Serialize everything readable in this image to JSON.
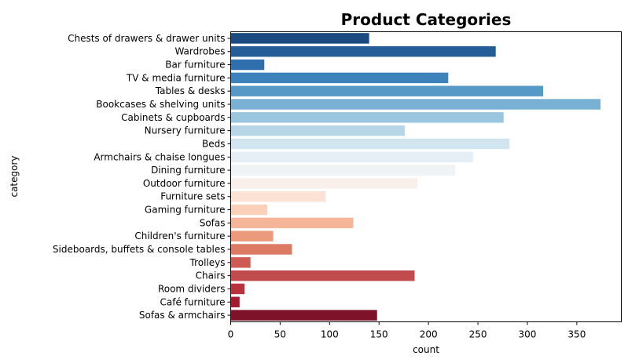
{
  "chart_data": {
    "type": "bar",
    "orientation": "horizontal",
    "title": "Product Categories",
    "xlabel": "count",
    "ylabel": "category",
    "xlim": [
      0,
      395
    ],
    "xticks": [
      0,
      50,
      100,
      150,
      200,
      250,
      300,
      350
    ],
    "grid": false,
    "legend": "none",
    "palette": "RdBu_r",
    "categories": [
      "Chests of drawers & drawer units",
      "Wardrobes",
      "Bar furniture",
      "TV & media furniture",
      "Tables & desks",
      "Bookcases & shelving units",
      "Cabinets & cupboards",
      "Nursery furniture",
      "Beds",
      "Armchairs & chaise longues",
      "Dining furniture",
      "Outdoor furniture",
      "Furniture sets",
      "Gaming furniture",
      "Sofas",
      "Children's furniture",
      "Sideboards, buffets & console tables",
      "Trolleys",
      "Chairs",
      "Room dividers",
      "Café furniture",
      "Sofas & armchairs"
    ],
    "values": [
      140,
      268,
      34,
      220,
      316,
      374,
      276,
      176,
      282,
      245,
      227,
      189,
      96,
      37,
      124,
      43,
      62,
      20,
      186,
      14,
      9,
      148
    ],
    "colors": [
      "#1a4a80",
      "#255d99",
      "#306fad",
      "#3d82bb",
      "#5799c6",
      "#78b1d3",
      "#9ac6e0",
      "#b6d6e8",
      "#d1e5f0",
      "#e4eef4",
      "#f0f3f5",
      "#f9f0eb",
      "#fce2d4",
      "#fbd0b9",
      "#f4b599",
      "#eb9a7c",
      "#dc7a63",
      "#cf5c54",
      "#c14c4d",
      "#b7323d",
      "#a31a31",
      "#7d1228"
    ]
  }
}
